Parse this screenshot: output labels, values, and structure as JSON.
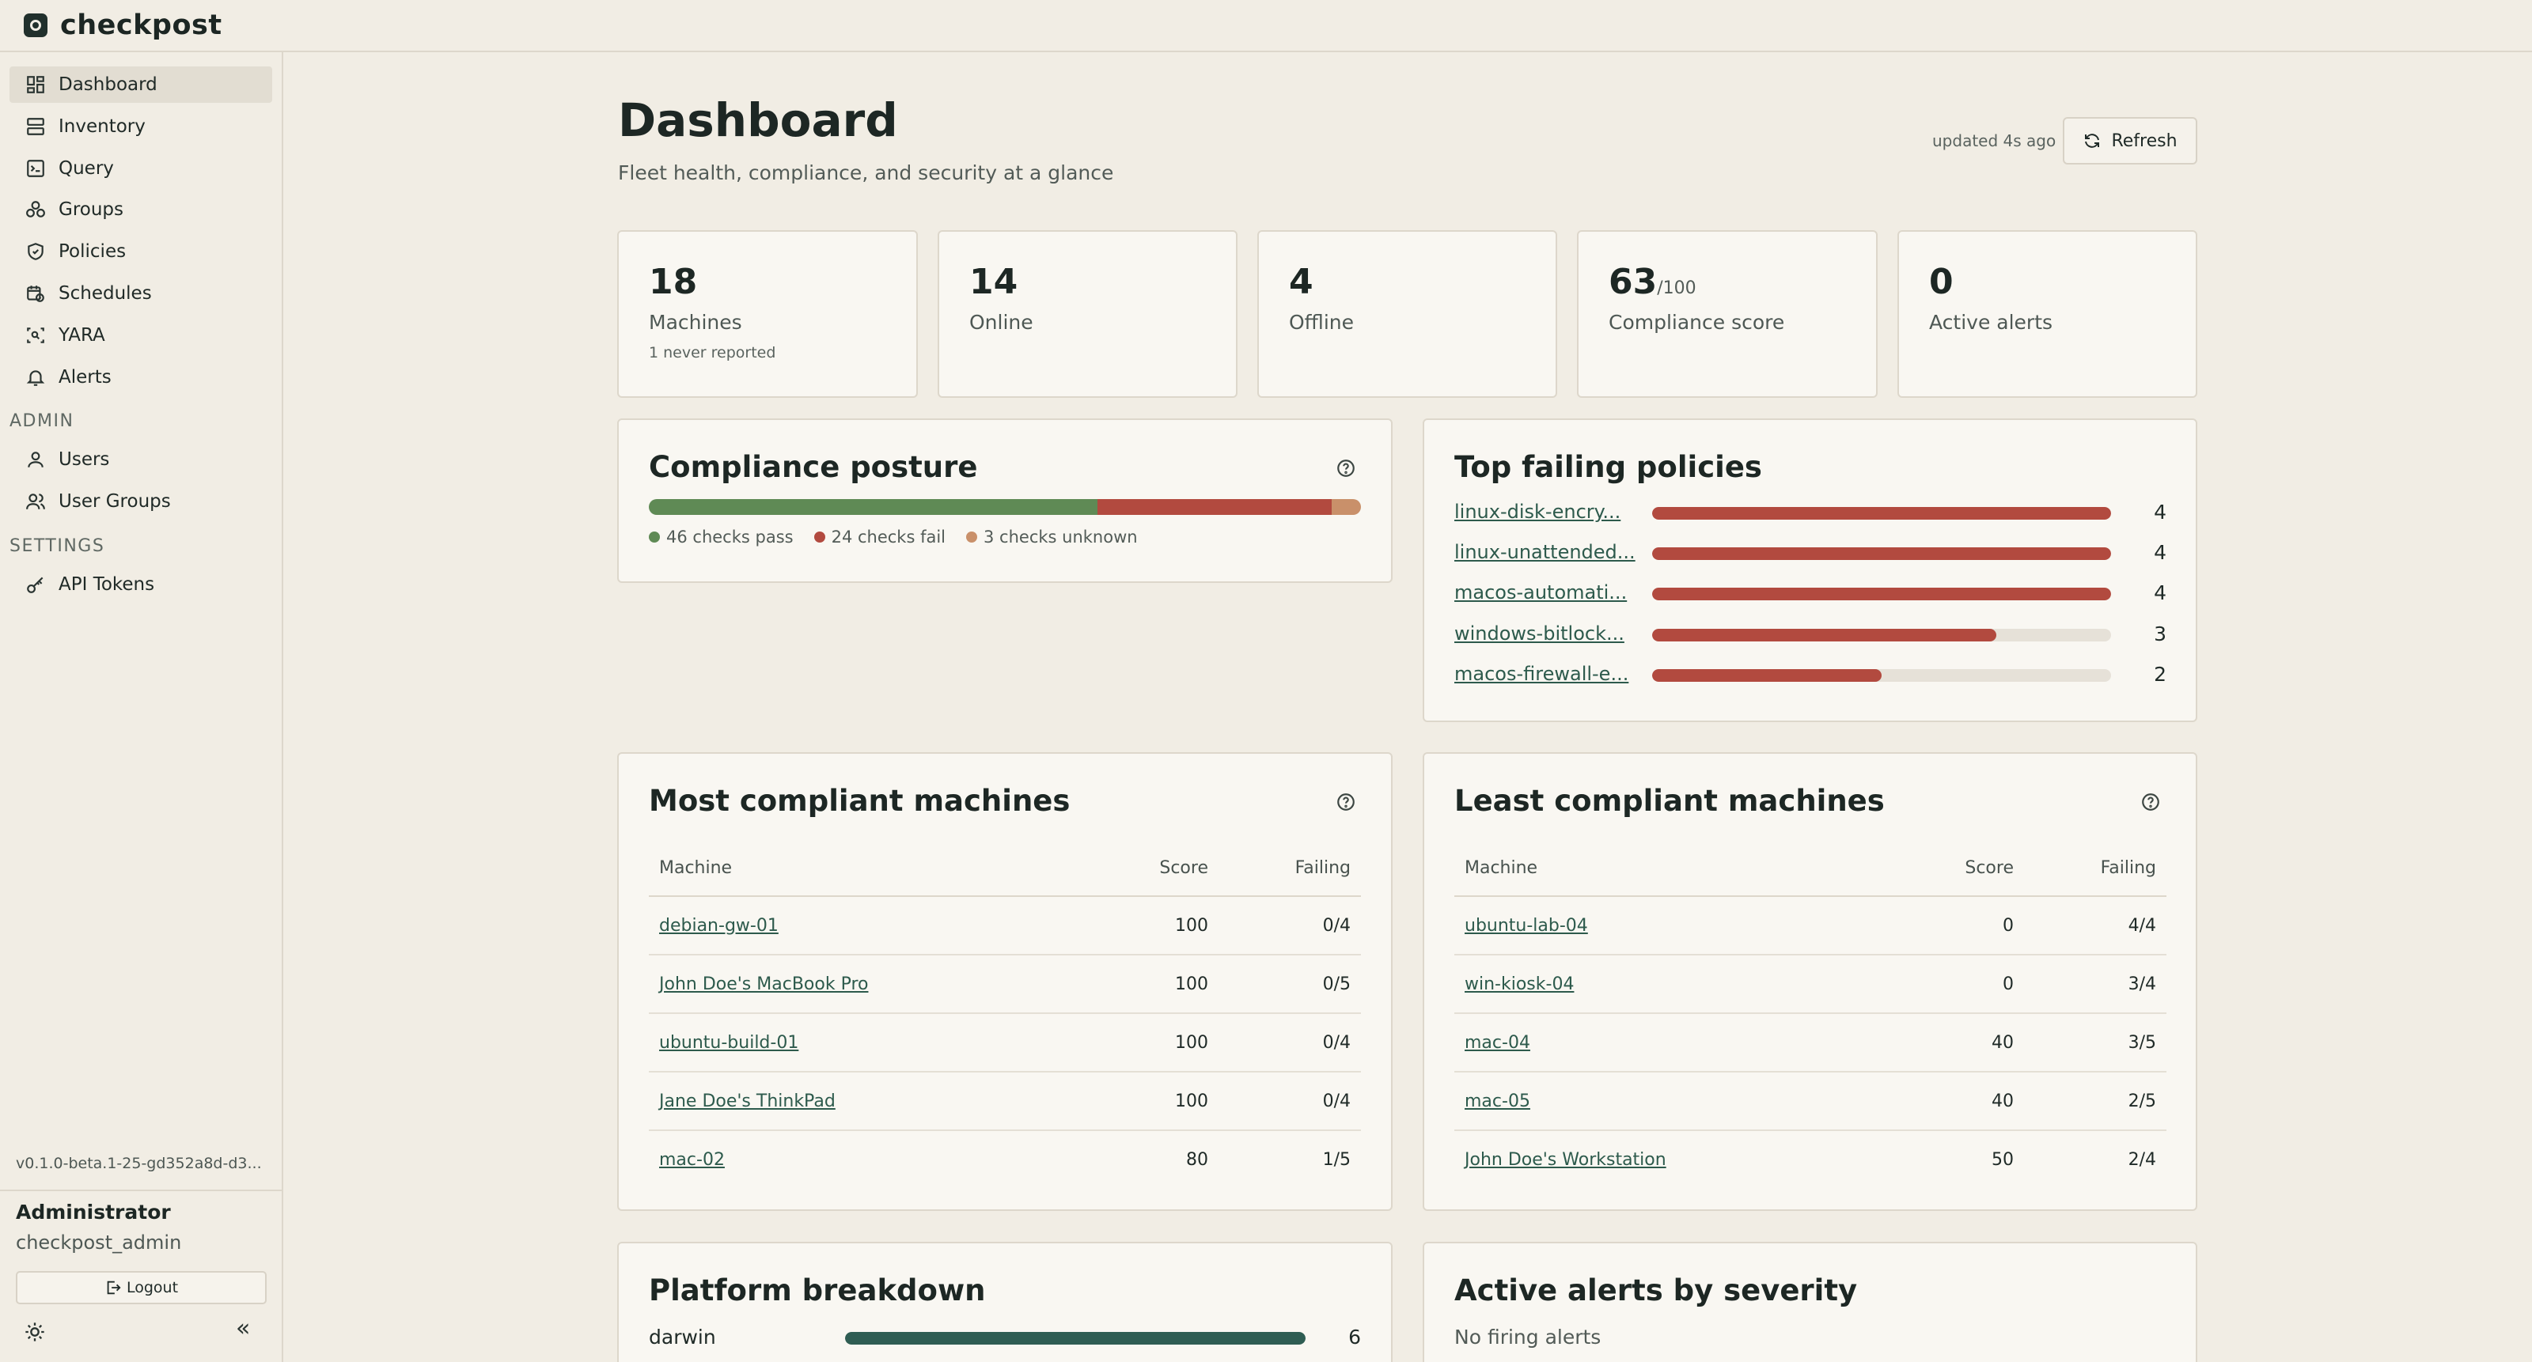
{
  "app": {
    "name": "checkpost"
  },
  "sidebar": {
    "items": [
      {
        "label": "Dashboard",
        "icon": "dashboard-icon",
        "active": true
      },
      {
        "label": "Inventory",
        "icon": "server-icon"
      },
      {
        "label": "Query",
        "icon": "terminal-icon"
      },
      {
        "label": "Groups",
        "icon": "groups-icon"
      },
      {
        "label": "Policies",
        "icon": "shield-icon"
      },
      {
        "label": "Schedules",
        "icon": "calendar-clock-icon"
      },
      {
        "label": "YARA",
        "icon": "scan-icon"
      },
      {
        "label": "Alerts",
        "icon": "bell-icon"
      }
    ],
    "admin_label": "ADMIN",
    "admin_items": [
      {
        "label": "Users",
        "icon": "user-icon"
      },
      {
        "label": "User Groups",
        "icon": "users-icon"
      }
    ],
    "settings_label": "SETTINGS",
    "settings_items": [
      {
        "label": "API Tokens",
        "icon": "key-icon"
      }
    ],
    "version": "v0.1.0-beta.1-25-gd352a8d-d3...",
    "user": {
      "name": "Administrator",
      "login": "checkpost_admin"
    },
    "logout_label": "Logout",
    "collapse_glyph": "«"
  },
  "header": {
    "title": "Dashboard",
    "subtitle": "Fleet health, compliance, and security at a glance",
    "updated": "updated 4s ago",
    "refresh_label": "Refresh"
  },
  "stats": [
    {
      "value": "18",
      "suffix": "",
      "label": "Machines",
      "note": "1 never reported"
    },
    {
      "value": "14",
      "suffix": "",
      "label": "Online",
      "note": ""
    },
    {
      "value": "4",
      "suffix": "",
      "label": "Offline",
      "note": ""
    },
    {
      "value": "63",
      "suffix": "/100",
      "label": "Compliance score",
      "note": ""
    },
    {
      "value": "0",
      "suffix": "",
      "label": "Active alerts",
      "note": ""
    }
  ],
  "compliance_posture": {
    "title": "Compliance posture",
    "pass": 46,
    "fail": 24,
    "unknown": 3,
    "pass_label": "46 checks pass",
    "fail_label": "24 checks fail",
    "unknown_label": "3 checks unknown",
    "colors": {
      "pass": "#5f8a55",
      "fail": "#b24a3f",
      "unknown": "#c9906a"
    }
  },
  "top_failing": {
    "title": "Top failing policies",
    "max": 4,
    "items": [
      {
        "name": "linux-disk-encry...",
        "count": 4
      },
      {
        "name": "linux-unattended...",
        "count": 4
      },
      {
        "name": "macos-automati...",
        "count": 4
      },
      {
        "name": "windows-bitlock...",
        "count": 3
      },
      {
        "name": "macos-firewall-e...",
        "count": 2
      }
    ]
  },
  "most_compliant": {
    "title": "Most compliant machines",
    "columns": [
      "Machine",
      "Score",
      "Failing"
    ],
    "rows": [
      {
        "machine": "debian-gw-01",
        "score": "100",
        "failing": "0/4"
      },
      {
        "machine": "John Doe's MacBook Pro",
        "score": "100",
        "failing": "0/5"
      },
      {
        "machine": "ubuntu-build-01",
        "score": "100",
        "failing": "0/4"
      },
      {
        "machine": "Jane Doe's ThinkPad",
        "score": "100",
        "failing": "0/4"
      },
      {
        "machine": "mac-02",
        "score": "80",
        "failing": "1/5"
      }
    ]
  },
  "least_compliant": {
    "title": "Least compliant machines",
    "columns": [
      "Machine",
      "Score",
      "Failing"
    ],
    "rows": [
      {
        "machine": "ubuntu-lab-04",
        "score": "0",
        "failing": "4/4"
      },
      {
        "machine": "win-kiosk-04",
        "score": "0",
        "failing": "3/4"
      },
      {
        "machine": "mac-04",
        "score": "40",
        "failing": "3/5"
      },
      {
        "machine": "mac-05",
        "score": "40",
        "failing": "2/5"
      },
      {
        "machine": "John Doe's Workstation",
        "score": "50",
        "failing": "2/4"
      }
    ]
  },
  "platform_breakdown": {
    "title": "Platform breakdown",
    "max": 6,
    "items": [
      {
        "name": "darwin",
        "count": 6
      }
    ]
  },
  "alerts_by_severity": {
    "title": "Active alerts by severity",
    "empty_text": "No firing alerts"
  }
}
